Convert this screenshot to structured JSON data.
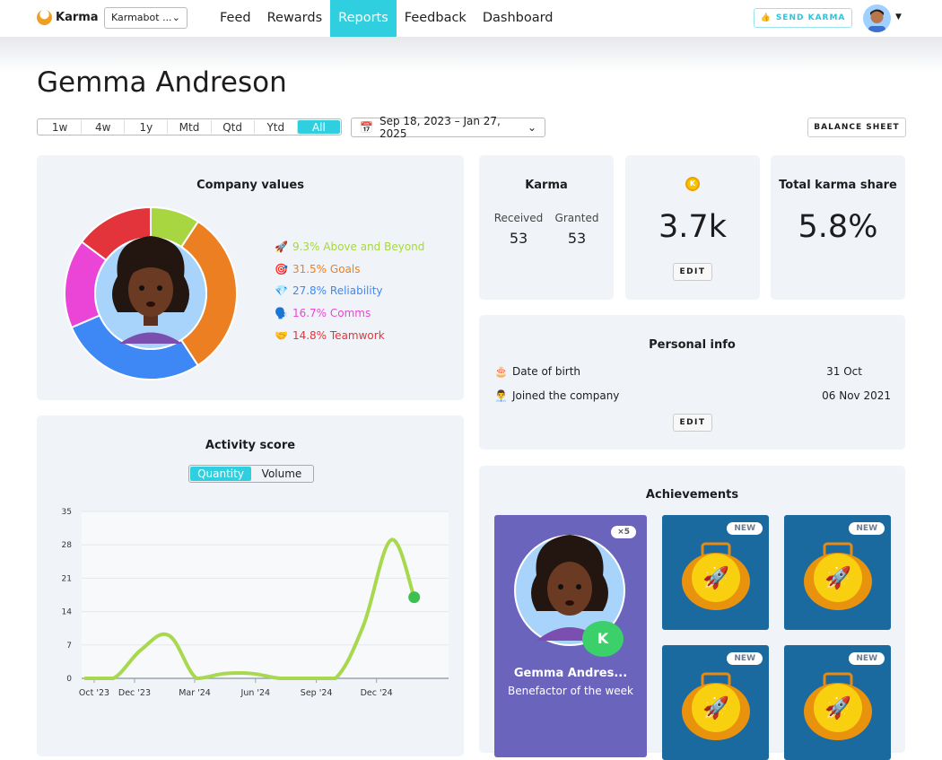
{
  "nav": {
    "logo": "Karma",
    "workspace": "Karmabot ...",
    "tabs": [
      "Feed",
      "Rewards",
      "Reports",
      "Feedback",
      "Dashboard"
    ],
    "active_tab": "Reports",
    "send_karma": "SEND KARMA",
    "accent": "#30cfe0"
  },
  "page": {
    "title": "Gemma Andreson",
    "ranges": [
      "1w",
      "4w",
      "1y",
      "Mtd",
      "Qtd",
      "Ytd",
      "All"
    ],
    "active_range": "All",
    "date_range": "Sep 18, 2023 – Jan 27, 2025",
    "balance_sheet": "BALANCE SHEET"
  },
  "company_values": {
    "title": "Company values",
    "items": [
      {
        "emoji": "🚀",
        "label": "9.3% Above and Beyond",
        "value": 9.3,
        "color": "#a8d640"
      },
      {
        "emoji": "🎯",
        "label": "31.5% Goals",
        "value": 31.5,
        "color": "#ec7f22"
      },
      {
        "emoji": "💎",
        "label": "27.8% Reliability",
        "value": 27.8,
        "color": "#3d88f5"
      },
      {
        "emoji": "🗣️",
        "label": "16.7% Comms",
        "value": 16.7,
        "color": "#ea45d6"
      },
      {
        "emoji": "🤝",
        "label": "14.8% Teamwork",
        "value": 14.8,
        "color": "#e3343c"
      }
    ]
  },
  "karma": {
    "title": "Karma",
    "received_label": "Received",
    "received": "53",
    "granted_label": "Granted",
    "granted": "53"
  },
  "balance": {
    "value": "3.7k",
    "edit": "EDIT",
    "icon": "karma-coin-icon"
  },
  "share": {
    "title": "Total karma share",
    "value": "5.8%"
  },
  "personal": {
    "title": "Personal info",
    "rows": [
      {
        "emoji": "🎂",
        "label": "Date of birth",
        "value": "31 Oct"
      },
      {
        "emoji": "👨‍💼",
        "label": "Joined the company",
        "value": "06 Nov 2021"
      }
    ],
    "edit": "EDIT"
  },
  "activity": {
    "title": "Activity score",
    "toggle": [
      "Quantity",
      "Volume"
    ],
    "active": "Quantity"
  },
  "chart_data": {
    "type": "line",
    "ylim": [
      0,
      35
    ],
    "yticks": [
      0,
      7,
      14,
      21,
      28,
      35
    ],
    "xtick_labels": [
      "Oct '23",
      "Dec '23",
      "Mar '24",
      "Jun '24",
      "Sep '24",
      "Dec '24"
    ],
    "x": [
      "2023-09-18",
      "2023-10-30",
      "2023-12-11",
      "2024-01-22",
      "2024-03-04",
      "2024-04-15",
      "2024-05-27",
      "2024-07-08",
      "2024-08-19",
      "2024-09-30",
      "2024-11-11",
      "2024-12-23",
      "2025-01-27"
    ],
    "values": [
      0,
      0,
      6,
      9,
      0,
      1,
      1,
      0,
      0,
      0,
      11,
      29,
      17
    ],
    "color": "#a8d84e",
    "last_point_color": "#3cc050",
    "grid": true
  },
  "achievements": {
    "title": "Achievements",
    "featured": {
      "name": "Gemma Andres...",
      "subtitle": "Benefactor of the week",
      "count": "×5"
    },
    "badges": [
      "NEW",
      "NEW",
      "NEW",
      "NEW"
    ]
  }
}
